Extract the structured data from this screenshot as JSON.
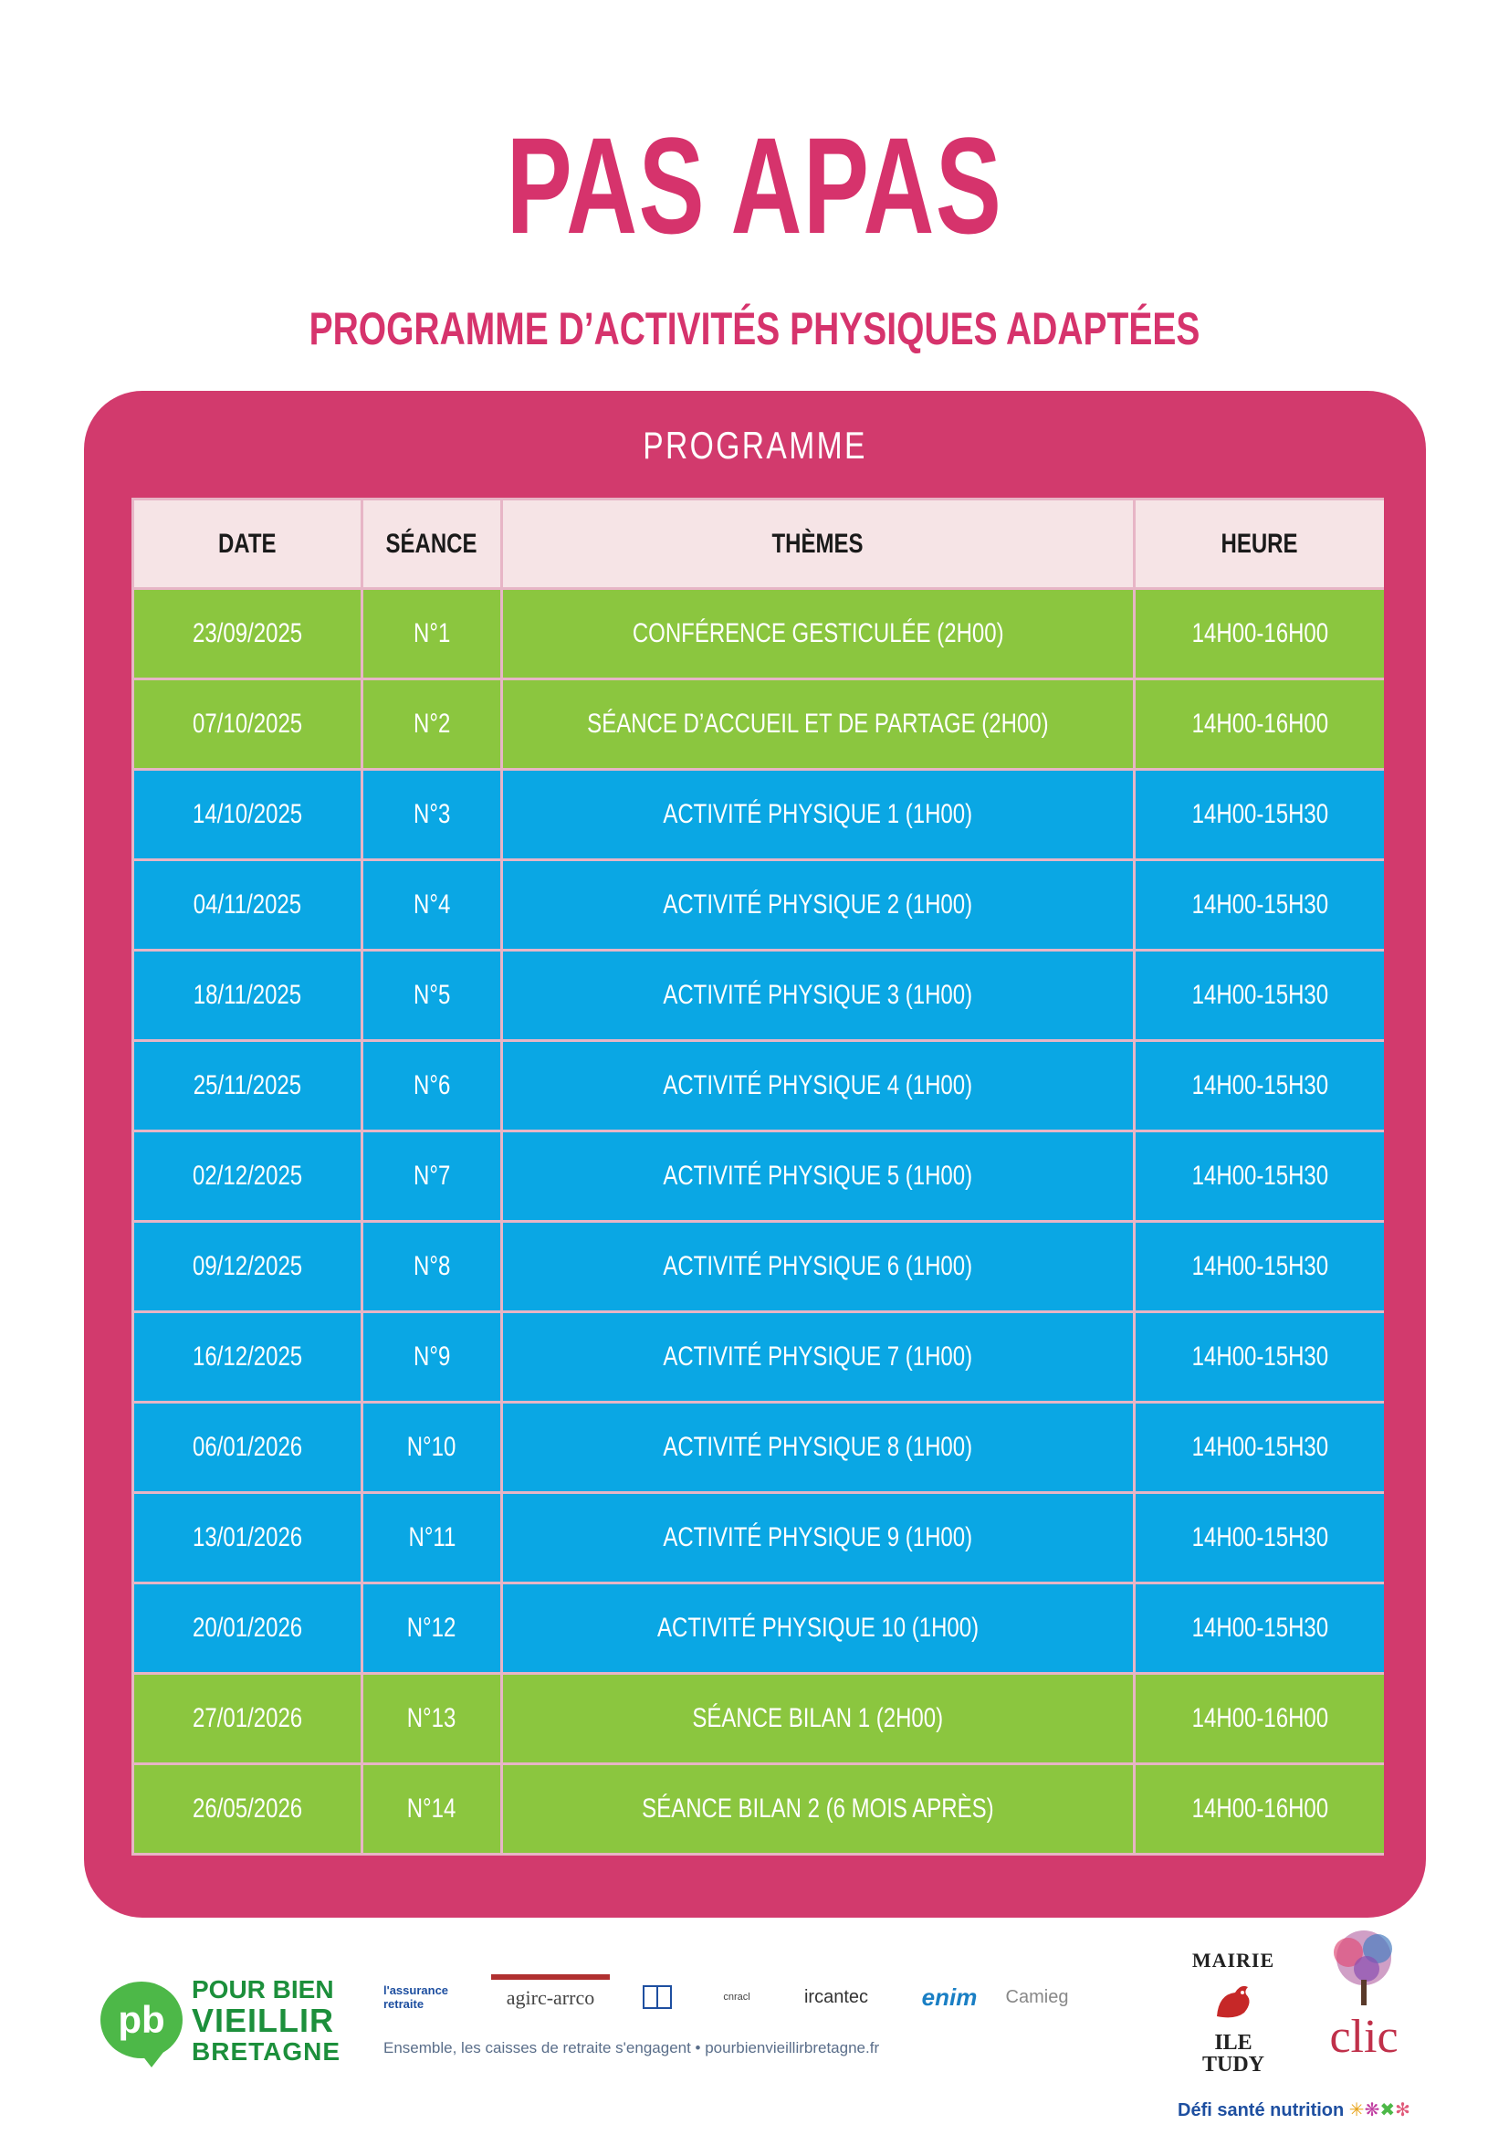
{
  "header": {
    "title": "PAS APAS",
    "subtitle": "PROGRAMME D’ACTIVITÉS PHYSIQUES ADAPTÉES"
  },
  "programme": {
    "title": "PROGRAMME",
    "columns": [
      "DATE",
      "SÉANCE",
      "THÈMES",
      "HEURE"
    ],
    "rows": [
      {
        "date": "23/09/2025",
        "seance": "N°1",
        "theme": "CONFÉRENCE GESTICULÉE (2H00)",
        "heure": "14H00-16H00",
        "color": "green"
      },
      {
        "date": "07/10/2025",
        "seance": "N°2",
        "theme": "SÉANCE D’ACCUEIL ET DE PARTAGE (2H00)",
        "heure": "14H00-16H00",
        "color": "green"
      },
      {
        "date": "14/10/2025",
        "seance": "N°3",
        "theme": "ACTIVITÉ PHYSIQUE 1 (1H00)",
        "heure": "14H00-15H30",
        "color": "blue"
      },
      {
        "date": "04/11/2025",
        "seance": "N°4",
        "theme": "ACTIVITÉ PHYSIQUE 2 (1H00)",
        "heure": "14H00-15H30",
        "color": "blue"
      },
      {
        "date": "18/11/2025",
        "seance": "N°5",
        "theme": "ACTIVITÉ PHYSIQUE 3 (1H00)",
        "heure": "14H00-15H30",
        "color": "blue"
      },
      {
        "date": "25/11/2025",
        "seance": "N°6",
        "theme": "ACTIVITÉ PHYSIQUE 4 (1H00)",
        "heure": "14H00-15H30",
        "color": "blue"
      },
      {
        "date": "02/12/2025",
        "seance": "N°7",
        "theme": "ACTIVITÉ PHYSIQUE 5 (1H00)",
        "heure": "14H00-15H30",
        "color": "blue"
      },
      {
        "date": "09/12/2025",
        "seance": "N°8",
        "theme": "ACTIVITÉ PHYSIQUE 6 (1H00)",
        "heure": "14H00-15H30",
        "color": "blue"
      },
      {
        "date": "16/12/2025",
        "seance": "N°9",
        "theme": "ACTIVITÉ PHYSIQUE 7 (1H00)",
        "heure": "14H00-15H30",
        "color": "blue"
      },
      {
        "date": "06/01/2026",
        "seance": "N°10",
        "theme": "ACTIVITÉ PHYSIQUE 8 (1H00)",
        "heure": "14H00-15H30",
        "color": "blue"
      },
      {
        "date": "13/01/2026",
        "seance": "N°11",
        "theme": "ACTIVITÉ PHYSIQUE 9 (1H00)",
        "heure": "14H00-15H30",
        "color": "blue"
      },
      {
        "date": "20/01/2026",
        "seance": "N°12",
        "theme": "ACTIVITÉ PHYSIQUE 10 (1H00)",
        "heure": "14H00-15H30",
        "color": "blue"
      },
      {
        "date": "27/01/2026",
        "seance": "N°13",
        "theme": "SÉANCE BILAN 1 (2H00)",
        "heure": "14H00-16H00",
        "color": "green"
      },
      {
        "date": "26/05/2026",
        "seance": "N°14",
        "theme": "SÉANCE BILAN 2 (6 MOIS APRÈS)",
        "heure": "14H00-16H00",
        "color": "green"
      }
    ]
  },
  "footer": {
    "pbvb": {
      "mark": "pb",
      "line1": "POUR BIEN",
      "line2": "VIEILLIR",
      "line3": "BRETAGNE"
    },
    "partners": [
      "l'assurance retraite",
      "agirc-arrco",
      "cnracl",
      "ircantec",
      "enim",
      "Camieg"
    ],
    "tagline": "Ensemble, les caisses de retraite s'engagent • pourbienvieillirbretagne.fr",
    "mairie": {
      "line1": "MAIRIE",
      "line2": "ILE",
      "line3": "TUDY"
    },
    "clic": {
      "word": "clic"
    },
    "defi": "Défi santé nutrition"
  },
  "colors": {
    "accent": "#d6336c",
    "card": "#d23a6d",
    "green": "#8bc63f",
    "blue": "#0aa7e4",
    "header_cell": "#f6e4e6"
  }
}
